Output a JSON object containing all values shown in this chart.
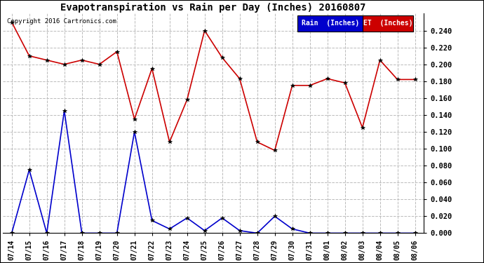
{
  "title": "Evapotranspiration vs Rain per Day (Inches) 20160807",
  "copyright": "Copyright 2016 Cartronics.com",
  "background_color": "#ffffff",
  "plot_bg_color": "#ffffff",
  "grid_color": "#bbbbbb",
  "dates": [
    "07/14",
    "07/15",
    "07/16",
    "07/17",
    "07/18",
    "07/19",
    "07/20",
    "07/21",
    "07/22",
    "07/23",
    "07/24",
    "07/25",
    "07/26",
    "07/27",
    "07/28",
    "07/29",
    "07/30",
    "07/31",
    "08/01",
    "08/02",
    "08/03",
    "08/04",
    "08/05",
    "08/06"
  ],
  "rain": [
    0.0,
    0.075,
    0.0,
    0.145,
    0.0,
    0.0,
    0.0,
    0.12,
    0.015,
    0.005,
    0.018,
    0.003,
    0.018,
    0.003,
    0.0,
    0.02,
    0.005,
    0.0,
    0.0,
    0.0,
    0.0,
    0.0,
    0.0,
    0.0
  ],
  "et": [
    0.25,
    0.21,
    0.205,
    0.2,
    0.205,
    0.2,
    0.215,
    0.135,
    0.195,
    0.108,
    0.158,
    0.24,
    0.208,
    0.183,
    0.108,
    0.098,
    0.175,
    0.175,
    0.183,
    0.178,
    0.125,
    0.205,
    0.182,
    0.182
  ],
  "rain_color": "#0000cc",
  "et_color": "#cc0000",
  "marker_color": "#000000",
  "ylim": [
    0.0,
    0.26
  ],
  "yticks": [
    0.0,
    0.02,
    0.04,
    0.06,
    0.08,
    0.1,
    0.12,
    0.14,
    0.16,
    0.18,
    0.2,
    0.22,
    0.24
  ],
  "legend_rain_bg": "#0000cc",
  "legend_et_bg": "#cc0000",
  "legend_rain_text": "Rain  (Inches)",
  "legend_et_text": "ET  (Inches)"
}
